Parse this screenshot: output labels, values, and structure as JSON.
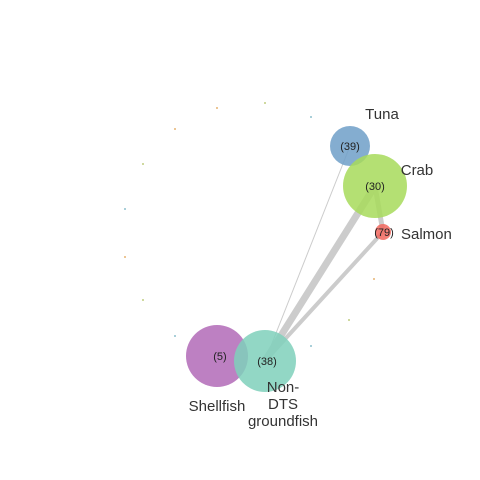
{
  "network": {
    "nodes": [
      {
        "id": "tuna",
        "label": "Tuna",
        "count_label": "(39)",
        "color": "#6e9fc8"
      },
      {
        "id": "crab",
        "label": "Crab",
        "count_label": "(30)",
        "color": "#a7db5a"
      },
      {
        "id": "salmon",
        "label": "Salmon",
        "count_label": "(79)",
        "color": "#f2675e"
      },
      {
        "id": "shellfish",
        "label": "Shellfish",
        "count_label": "(5)",
        "color": "#b26ab7"
      },
      {
        "id": "non-dts-groundfish",
        "label": [
          "Non-",
          "DTS",
          "groundfish"
        ],
        "count_label": "(38)",
        "color": "#7fd0bb"
      }
    ],
    "edges": [
      {
        "from": "tuna",
        "to": "non-dts-groundfish"
      },
      {
        "from": "crab",
        "to": "non-dts-groundfish"
      },
      {
        "from": "crab",
        "to": "salmon"
      },
      {
        "from": "salmon",
        "to": "non-dts-groundfish"
      }
    ],
    "minor_node_colors": [
      "#e0a050",
      "#b0c060",
      "#70b0c0"
    ],
    "edge_color": "#cccccc"
  }
}
